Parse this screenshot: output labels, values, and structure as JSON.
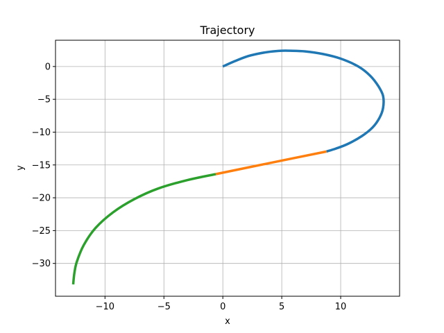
{
  "chart_data": {
    "type": "line",
    "title": "Trajectory",
    "xlabel": "x",
    "ylabel": "y",
    "xlim": [
      -14.2,
      15.0
    ],
    "ylim": [
      -35.0,
      4.0
    ],
    "xticks": [
      -10,
      -5,
      0,
      5,
      10
    ],
    "yticks": [
      0,
      -5,
      -10,
      -15,
      -20,
      -25,
      -30
    ],
    "grid": true,
    "series": [
      {
        "color": "#1f77b4",
        "x": [
          0.0,
          1.0,
          2.0,
          3.0,
          4.0,
          5.0,
          5.7,
          7.0,
          8.5,
          10.0,
          11.5,
          12.5,
          13.2,
          13.6,
          13.6,
          13.3,
          12.7,
          11.8,
          10.6,
          9.6,
          8.8
        ],
        "y": [
          0.0,
          0.8,
          1.5,
          1.95,
          2.25,
          2.4,
          2.4,
          2.3,
          1.9,
          1.2,
          0.0,
          -1.4,
          -3.0,
          -4.5,
          -6.3,
          -7.8,
          -9.3,
          -10.6,
          -11.8,
          -12.5,
          -12.95
        ]
      },
      {
        "color": "#ff7f0e",
        "x": [
          8.8,
          4.0,
          -0.6
        ],
        "y": [
          -12.95,
          -14.7,
          -16.4
        ]
      },
      {
        "color": "#2ca02c",
        "x": [
          -0.6,
          -3.0,
          -5.5,
          -7.5,
          -9.3,
          -10.8,
          -11.8,
          -12.4,
          -12.6,
          -12.7
        ],
        "y": [
          -16.4,
          -17.3,
          -18.6,
          -20.2,
          -22.2,
          -24.6,
          -27.2,
          -29.8,
          -31.5,
          -33.2
        ]
      }
    ]
  }
}
